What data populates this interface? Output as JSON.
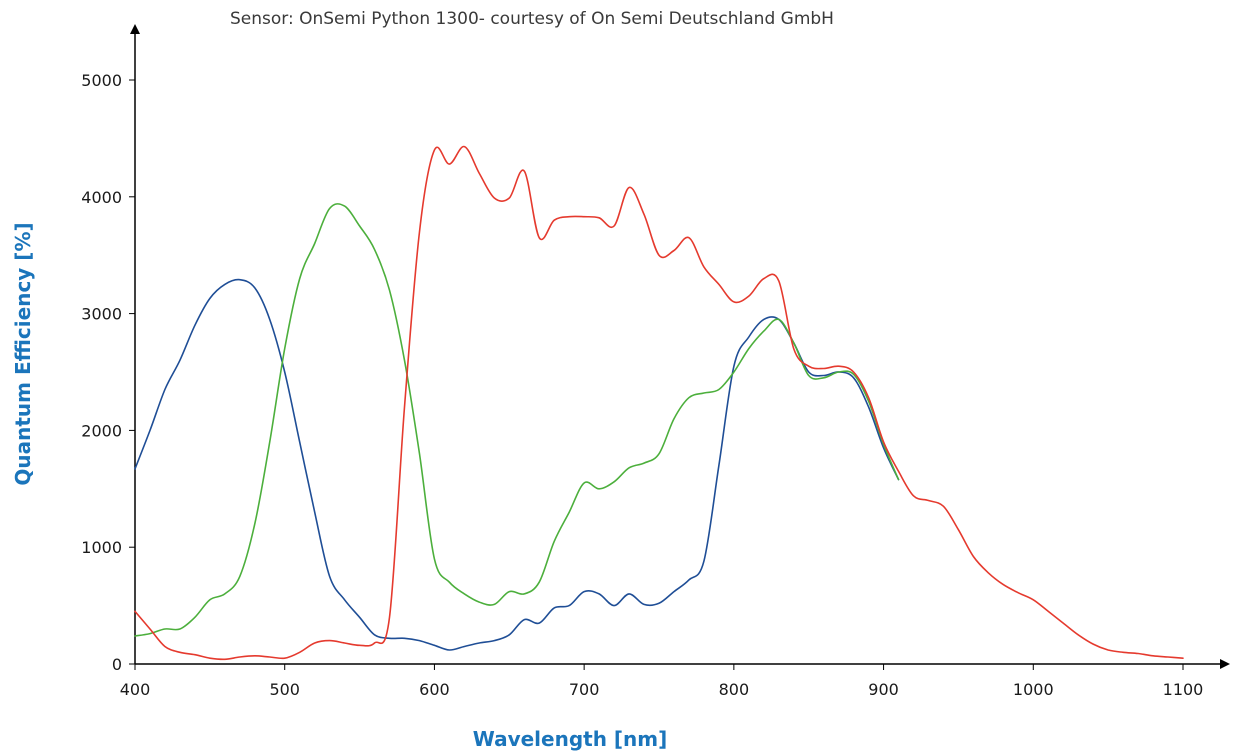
{
  "chart_data": {
    "type": "line",
    "title": "Sensor: OnSemi Python 1300- courtesy of On Semi Deutschland GmbH",
    "xlabel": "Wavelength [nm]",
    "ylabel": "Quantum Efficiency [%]",
    "xlim": [
      400,
      1100
    ],
    "ylim": [
      0,
      5000
    ],
    "xticks": [
      400,
      500,
      600,
      700,
      800,
      900,
      1000,
      1100
    ],
    "yticks": [
      0,
      1000,
      2000,
      3000,
      4000,
      5000
    ],
    "grid": false,
    "legend": "none",
    "colors": {
      "axis": "#000000",
      "axis_title": "#1b75bb"
    },
    "series": [
      {
        "color": "#1f4e96",
        "x": [
          400,
          410,
          420,
          430,
          440,
          450,
          460,
          470,
          480,
          490,
          500,
          510,
          520,
          530,
          540,
          550,
          560,
          570,
          580,
          590,
          600,
          610,
          620,
          630,
          640,
          650,
          660,
          670,
          680,
          690,
          700,
          710,
          720,
          730,
          740,
          750,
          760,
          770,
          780,
          790,
          800,
          810,
          820,
          830,
          840,
          850,
          860,
          870,
          880,
          890,
          900,
          910
        ],
        "y": [
          1670,
          2000,
          2350,
          2600,
          2900,
          3130,
          3250,
          3290,
          3220,
          2950,
          2500,
          1900,
          1300,
          750,
          550,
          400,
          250,
          220,
          220,
          200,
          160,
          120,
          150,
          180,
          200,
          250,
          380,
          350,
          480,
          500,
          620,
          600,
          500,
          600,
          510,
          520,
          620,
          720,
          880,
          1700,
          2550,
          2800,
          2950,
          2950,
          2750,
          2500,
          2470,
          2500,
          2450,
          2200,
          1850,
          1580
        ]
      },
      {
        "color": "#4caf3c",
        "x": [
          400,
          410,
          420,
          430,
          440,
          450,
          460,
          470,
          480,
          490,
          500,
          510,
          520,
          530,
          540,
          550,
          560,
          570,
          580,
          590,
          600,
          610,
          620,
          630,
          640,
          650,
          660,
          670,
          680,
          690,
          700,
          710,
          720,
          730,
          740,
          750,
          760,
          770,
          780,
          790,
          800,
          810,
          820,
          830,
          840,
          850,
          860,
          870,
          880,
          890,
          900,
          910
        ],
        "y": [
          240,
          260,
          300,
          300,
          400,
          550,
          600,
          750,
          1200,
          1900,
          2700,
          3300,
          3600,
          3900,
          3920,
          3750,
          3550,
          3200,
          2600,
          1800,
          900,
          700,
          600,
          530,
          510,
          620,
          600,
          700,
          1050,
          1300,
          1550,
          1500,
          1560,
          1680,
          1720,
          1800,
          2100,
          2280,
          2320,
          2350,
          2500,
          2700,
          2850,
          2950,
          2750,
          2470,
          2450,
          2500,
          2480,
          2250,
          1880,
          1580
        ]
      },
      {
        "color": "#e53a2e",
        "x": [
          400,
          410,
          420,
          430,
          440,
          450,
          460,
          470,
          480,
          490,
          500,
          510,
          520,
          530,
          540,
          550,
          560,
          570,
          580,
          590,
          600,
          610,
          620,
          630,
          640,
          650,
          660,
          670,
          680,
          690,
          700,
          710,
          720,
          730,
          740,
          750,
          760,
          770,
          780,
          790,
          800,
          810,
          820,
          830,
          840,
          850,
          860,
          870,
          880,
          890,
          900,
          910,
          920,
          930,
          940,
          950,
          960,
          970,
          980,
          990,
          1000,
          1010,
          1020,
          1030,
          1040,
          1050,
          1060,
          1070,
          1080,
          1090,
          1100
        ],
        "y": [
          450,
          300,
          150,
          100,
          80,
          50,
          40,
          60,
          70,
          60,
          50,
          100,
          180,
          200,
          180,
          160,
          180,
          400,
          2200,
          3700,
          4400,
          4280,
          4430,
          4200,
          3990,
          3990,
          4220,
          3650,
          3800,
          3830,
          3830,
          3820,
          3750,
          4080,
          3850,
          3500,
          3540,
          3650,
          3400,
          3250,
          3100,
          3150,
          3300,
          3280,
          2700,
          2550,
          2530,
          2550,
          2500,
          2280,
          1900,
          1650,
          1440,
          1400,
          1350,
          1150,
          920,
          780,
          680,
          610,
          550,
          450,
          350,
          250,
          170,
          120,
          100,
          90,
          70,
          60,
          50
        ]
      }
    ]
  }
}
